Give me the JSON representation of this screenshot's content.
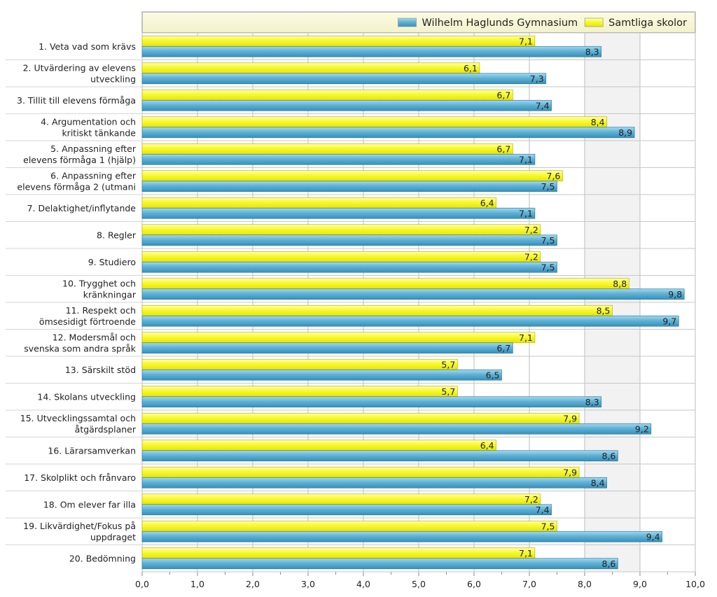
{
  "chart_data": {
    "type": "bar",
    "orientation": "horizontal",
    "categories": [
      [
        "1. Veta vad som krävs"
      ],
      [
        "2. Utvärdering av elevens",
        "utveckling"
      ],
      [
        "3. Tillit till elevens förmåga"
      ],
      [
        "4. Argumentation och",
        "kritiskt tänkande"
      ],
      [
        "5. Anpassning efter",
        "elevens förmåga 1 (hjälp)"
      ],
      [
        "6. Anpassning efter",
        "elevens förmåga 2 (utmani"
      ],
      [
        "7. Delaktighet/inflytande"
      ],
      [
        "8. Regler"
      ],
      [
        "9. Studiero"
      ],
      [
        "10. Trygghet och",
        "kränkningar"
      ],
      [
        "11. Respekt och",
        "ömsesidigt förtroende"
      ],
      [
        "12. Modersmål och",
        "svenska som andra språk"
      ],
      [
        "13. Särskilt stöd"
      ],
      [
        "14. Skolans utveckling"
      ],
      [
        "15. Utvecklingssamtal och",
        "åtgärdsplaner"
      ],
      [
        "16. Lärarsamverkan"
      ],
      [
        "17. Skolplikt och frånvaro"
      ],
      [
        "18. Om elever far illa"
      ],
      [
        "19. Likvärdighet/Fokus på",
        "uppdraget"
      ],
      [
        "20. Bedömning"
      ]
    ],
    "series": [
      {
        "name": "Samtliga skolor",
        "color": "#f4f41c",
        "values": [
          7.1,
          6.1,
          6.7,
          8.4,
          6.7,
          7.6,
          6.4,
          7.2,
          7.2,
          8.8,
          8.5,
          7.1,
          5.7,
          5.7,
          7.9,
          6.4,
          7.9,
          7.2,
          7.5,
          7.1
        ],
        "labels": [
          "7,1",
          "6,1",
          "6,7",
          "8,4",
          "6,7",
          "7,6",
          "6,4",
          "7,2",
          "7,2",
          "8,8",
          "8,5",
          "7,1",
          "5,7",
          "5,7",
          "7,9",
          "6,4",
          "7,9",
          "7,2",
          "7,5",
          "7,1"
        ]
      },
      {
        "name": "Wilhelm Haglunds Gymnasium",
        "color": "#4ea6cc",
        "values": [
          8.3,
          7.3,
          7.4,
          8.9,
          7.1,
          7.5,
          7.1,
          7.5,
          7.5,
          9.8,
          9.7,
          6.7,
          6.5,
          8.3,
          9.2,
          8.6,
          8.4,
          7.4,
          9.4,
          8.6
        ],
        "labels": [
          "8,3",
          "7,3",
          "7,4",
          "8,9",
          "7,1",
          "7,5",
          "7,1",
          "7,5",
          "7,5",
          "9,8",
          "9,7",
          "6,7",
          "6,5",
          "8,3",
          "9,2",
          "8,6",
          "8,4",
          "7,4",
          "9,4",
          "8,6"
        ]
      }
    ],
    "legend": [
      {
        "name": "Wilhelm Haglunds Gymnasium",
        "color": "#4ea6cc"
      },
      {
        "name": "Samtliga skolor",
        "color": "#f4f41c"
      }
    ],
    "xlim": [
      0,
      10
    ],
    "xticks": [
      0,
      1,
      2,
      3,
      4,
      5,
      6,
      7,
      8,
      9,
      10
    ],
    "xtick_labels": [
      "0,0",
      "1,0",
      "2,0",
      "3,0",
      "4,0",
      "5,0",
      "6,0",
      "7,0",
      "8,0",
      "9,0",
      "10,0"
    ],
    "shaded_range": [
      8,
      9
    ],
    "legend_position": "top-right",
    "grid": true
  }
}
